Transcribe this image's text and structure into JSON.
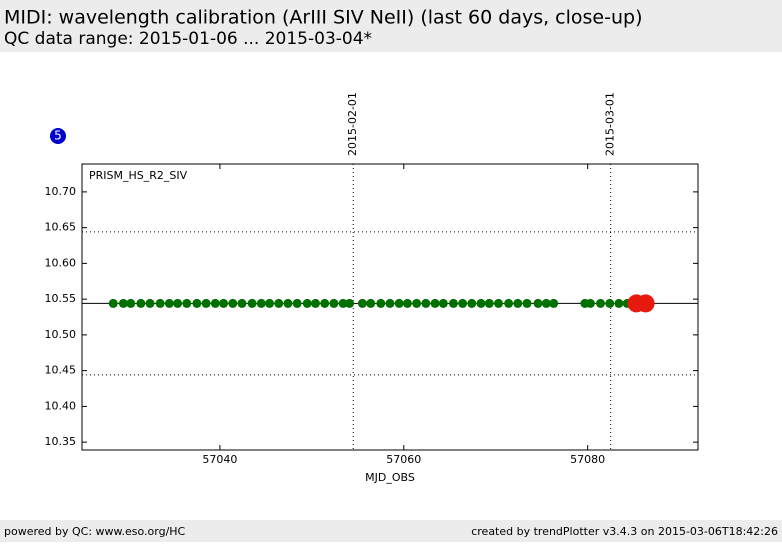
{
  "header": {
    "title": "MIDI: wavelength calibration (ArIII SIV NeII) (last 60 days, close-up)",
    "subtitle": "QC data range: 2015-01-06 ... 2015-03-04*"
  },
  "chart_data": {
    "type": "scatter",
    "badge": "5",
    "annotation": "PRISM_HS_R2_SIV",
    "xlabel": "MJD_OBS",
    "xlim": [
      57025,
      57092
    ],
    "ylim": [
      10.339,
      10.739
    ],
    "xticks": [
      57040,
      57060,
      57080
    ],
    "yticks": [
      10.35,
      {
        "value": 10.4,
        "label": "10.40"
      },
      10.45,
      {
        "value": 10.5,
        "label": "10.50"
      },
      10.55,
      {
        "value": 10.6,
        "label": "10.60"
      },
      10.65,
      {
        "value": 10.7,
        "label": "10.70"
      }
    ],
    "ref_lines": [
      10.544
    ],
    "limit_lines": [
      10.644,
      10.444
    ],
    "date_lines": [
      {
        "value": 57054.5,
        "label": "2015-02-01"
      },
      {
        "value": 57082.5,
        "label": "2015-03-01"
      }
    ],
    "series": [
      {
        "color": "#007000",
        "size": 4.5,
        "x": [
          57028.4,
          57029.5,
          57030.3,
          57031.4,
          57032.4,
          57033.5,
          57034.5,
          57035.4,
          57036.4,
          57037.5,
          57038.5,
          57039.5,
          57040.4,
          57041.4,
          57042.4,
          57043.5,
          57044.5,
          57045.4,
          57046.4,
          57047.4,
          57048.4,
          57049.5,
          57050.4,
          57051.4,
          57052.4,
          57053.4,
          57054.1,
          57055.5,
          57056.4,
          57057.5,
          57058.5,
          57059.5,
          57060.4,
          57061.4,
          57062.4,
          57063.4,
          57064.3,
          57065.4,
          57066.4,
          57067.4,
          57068.4,
          57069.3,
          57070.3,
          57071.4,
          57072.4,
          57073.4,
          57074.6,
          57075.5,
          57076.3,
          57079.7,
          57080.3,
          57081.4,
          57082.4,
          57083.4,
          57084.3
        ],
        "values": [
          10.544,
          10.544,
          10.544,
          10.544,
          10.544,
          10.544,
          10.544,
          10.544,
          10.544,
          10.544,
          10.544,
          10.544,
          10.544,
          10.544,
          10.544,
          10.544,
          10.544,
          10.544,
          10.544,
          10.544,
          10.544,
          10.544,
          10.544,
          10.544,
          10.544,
          10.544,
          10.544,
          10.544,
          10.544,
          10.544,
          10.544,
          10.544,
          10.544,
          10.544,
          10.544,
          10.544,
          10.544,
          10.544,
          10.544,
          10.544,
          10.544,
          10.544,
          10.544,
          10.544,
          10.544,
          10.544,
          10.544,
          10.544,
          10.544,
          10.544,
          10.544,
          10.544,
          10.544,
          10.544,
          10.544
        ]
      },
      {
        "color": "#e8190f",
        "size": 9,
        "x": [
          57085.3,
          57086.3
        ],
        "values": [
          10.544,
          10.544
        ]
      }
    ]
  },
  "footer": {
    "left": "powered by QC: www.eso.org/HC",
    "right": "created by trendPlotter v3.4.3 on 2015-03-06T18:42:26"
  }
}
